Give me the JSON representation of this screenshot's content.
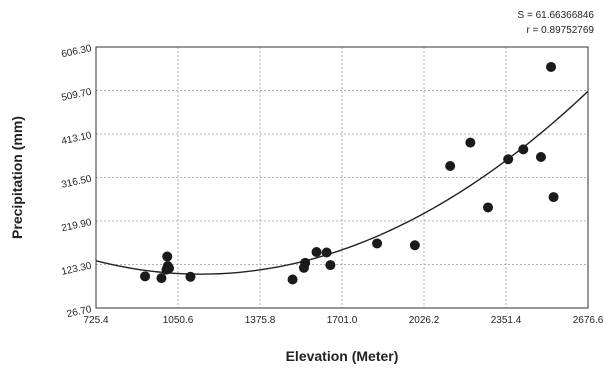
{
  "chart_data": {
    "type": "scatter",
    "title": "",
    "xlabel": "Elevation (Meter)",
    "ylabel": "Precipitation (mm)",
    "xlim": [
      725.4,
      2676.6
    ],
    "ylim": [
      26.7,
      606.3
    ],
    "x_ticks": [
      "725.4",
      "1050.6",
      "1375.8",
      "1701.0",
      "2026.2",
      "2351.4",
      "2676.6"
    ],
    "y_ticks": [
      "26.70",
      "123.30",
      "219.90",
      "316.50",
      "413.10",
      "509.70",
      "606.30"
    ],
    "grid": true,
    "annotations": {
      "s_value": "S = 61.66366846",
      "r_value": "r = 0.89752769"
    },
    "fit_curve": {
      "type": "quadratic",
      "x": [
        725.4,
        900,
        1050,
        1200,
        1400,
        1600,
        1800,
        2000,
        2200,
        2400,
        2676.6
      ],
      "y": [
        128,
        110,
        104,
        107,
        118,
        142,
        176,
        224,
        290,
        370,
        515
      ]
    },
    "series": [
      {
        "points": [
          {
            "x": 920,
            "y": 97
          },
          {
            "x": 985,
            "y": 93
          },
          {
            "x": 1005,
            "y": 112
          },
          {
            "x": 1008,
            "y": 141
          },
          {
            "x": 1010,
            "y": 120
          },
          {
            "x": 1015,
            "y": 115
          },
          {
            "x": 1100,
            "y": 96
          },
          {
            "x": 1505,
            "y": 90
          },
          {
            "x": 1550,
            "y": 116
          },
          {
            "x": 1555,
            "y": 127
          },
          {
            "x": 1600,
            "y": 151
          },
          {
            "x": 1640,
            "y": 150
          },
          {
            "x": 1655,
            "y": 122
          },
          {
            "x": 1840,
            "y": 170
          },
          {
            "x": 1990,
            "y": 166
          },
          {
            "x": 2130,
            "y": 342
          },
          {
            "x": 2210,
            "y": 394
          },
          {
            "x": 2280,
            "y": 250
          },
          {
            "x": 2360,
            "y": 357
          },
          {
            "x": 2420,
            "y": 379
          },
          {
            "x": 2490,
            "y": 362
          },
          {
            "x": 2530,
            "y": 562
          },
          {
            "x": 2540,
            "y": 273
          }
        ]
      }
    ]
  }
}
